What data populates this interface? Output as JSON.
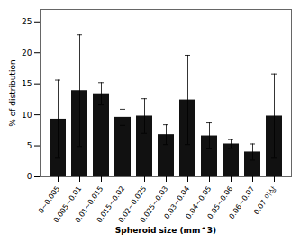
{
  "chart_data": {
    "type": "bar",
    "categories": [
      "0~0.005",
      "0.005~0.01",
      "0.01~0.015",
      "0.015~0.02",
      "0.02~0.025",
      "0.025~0.03",
      "0.03~0.04",
      "0.04~0.05",
      "0.05~0.06",
      "0.06~0.07",
      "0.07 이상"
    ],
    "values": [
      9.3,
      13.9,
      13.4,
      9.6,
      9.8,
      6.8,
      12.4,
      6.6,
      5.3,
      4.0,
      9.8
    ],
    "errors": [
      6.3,
      9.0,
      1.8,
      1.3,
      2.8,
      1.6,
      7.2,
      2.1,
      0.7,
      1.3,
      6.8
    ],
    "color": "#111111",
    "xlabel": "Spheroid size (mm^3)",
    "ylabel": "% of distribution",
    "ylim": [
      0,
      27
    ],
    "yticks": [
      0,
      5,
      10,
      15,
      20,
      25
    ],
    "grid": false
  }
}
